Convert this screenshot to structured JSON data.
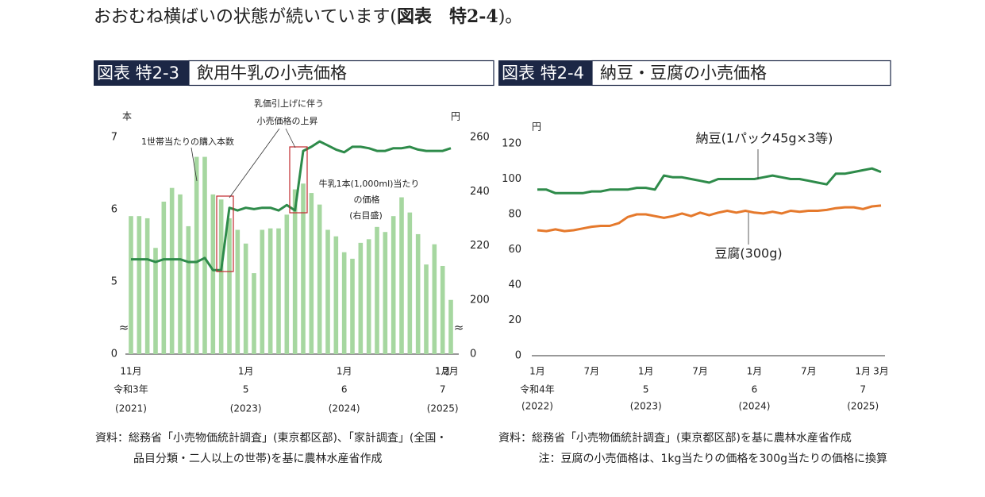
{
  "intro": {
    "parts": [
      "おおむね横ばいの状態が続いています(",
      "図表　特2-4",
      ")。"
    ]
  },
  "chart_data": [
    {
      "type": "bar_line",
      "figure_number": "図表 特2-3",
      "title": "飲用牛乳の小売価格",
      "y_unit": "本",
      "y2_unit": "円",
      "axis_break_symbol": "≈",
      "ylim": [
        0,
        7
      ],
      "ybreak": [
        0,
        4
      ],
      "yticks": [
        0,
        5,
        6,
        7
      ],
      "y2lim": [
        0,
        260
      ],
      "y2break": [
        0,
        180
      ],
      "y2ticks": [
        0,
        200,
        220,
        240,
        260
      ],
      "categories": [
        "11月",
        null,
        null,
        null,
        null,
        null,
        null,
        null,
        null,
        null,
        null,
        null,
        null,
        null,
        "1月",
        null,
        null,
        null,
        null,
        null,
        null,
        null,
        null,
        null,
        null,
        null,
        "1月",
        null,
        null,
        null,
        null,
        null,
        null,
        null,
        null,
        null,
        null,
        null,
        "1月",
        "2月"
      ],
      "era_labels": [
        "令和3年",
        null,
        null,
        null,
        null,
        null,
        null,
        null,
        null,
        null,
        null,
        null,
        null,
        null,
        "5",
        null,
        null,
        null,
        null,
        null,
        null,
        null,
        null,
        null,
        null,
        null,
        "6",
        null,
        null,
        null,
        null,
        null,
        null,
        null,
        null,
        null,
        null,
        null,
        "7",
        null
      ],
      "year_labels": [
        "(2021)",
        null,
        null,
        null,
        null,
        null,
        null,
        null,
        null,
        null,
        null,
        null,
        null,
        null,
        "(2023)",
        null,
        null,
        null,
        null,
        null,
        null,
        null,
        null,
        null,
        null,
        null,
        "(2024)",
        null,
        null,
        null,
        null,
        null,
        null,
        null,
        null,
        null,
        null,
        null,
        "(2025)",
        null
      ],
      "series": [
        {
          "name": [
            "1世帯当たりの購入本数"
          ],
          "type": "bar",
          "color": "#a6d7a0",
          "values": [
            5.91,
            5.91,
            5.88,
            5.47,
            6.11,
            6.3,
            6.21,
            5.77,
            6.73,
            6.73,
            6.21,
            6.14,
            5.88,
            5.72,
            5.53,
            5.12,
            5.72,
            5.74,
            5.74,
            5.93,
            6.28,
            6.36,
            6.23,
            6.07,
            5.72,
            5.63,
            5.41,
            5.32,
            5.54,
            5.59,
            5.76,
            5.69,
            5.91,
            6.17,
            5.96,
            5.66,
            5.24,
            5.52,
            5.22,
            4.75
          ]
        },
        {
          "name": [
            "牛乳1本(1,000ml)当たり",
            "の価格",
            "(右目盛)"
          ],
          "type": "line",
          "axis": "y2",
          "color": "#2e8b4a",
          "values": [
            215,
            215,
            215,
            214,
            215,
            215,
            215,
            214,
            214,
            215.5,
            211,
            211,
            234,
            233,
            234,
            233.5,
            234,
            234,
            233,
            235,
            233,
            255,
            256.5,
            258.5,
            257,
            255.5,
            254.5,
            256.5,
            256.5,
            256,
            255,
            255,
            256,
            256,
            256.5,
            255.5,
            255,
            255,
            255,
            256
          ]
        }
      ],
      "annotation": [
        "乳価引上げに伴う",
        "小売価格の上昇"
      ],
      "source": [
        "資料：総務省「小売物価統計調査」(東京都区部)、「家計調査」(全国・",
        "品目分類・二人以上の世帯)を基に農林水産省作成"
      ]
    },
    {
      "type": "line",
      "figure_number": "図表 特2-4",
      "title": "納豆・豆腐の小売価格",
      "y_unit": "円",
      "ylim": [
        0,
        120
      ],
      "yticks": [
        0,
        20,
        40,
        60,
        80,
        100,
        120
      ],
      "categories": [
        "1月",
        null,
        null,
        null,
        null,
        null,
        "7月",
        null,
        null,
        null,
        null,
        null,
        "1月",
        null,
        null,
        null,
        null,
        null,
        "7月",
        null,
        null,
        null,
        null,
        null,
        "1月",
        null,
        null,
        null,
        null,
        null,
        "7月",
        null,
        null,
        null,
        null,
        null,
        "1月",
        null,
        "3月"
      ],
      "era_labels": [
        "令和4年",
        null,
        null,
        null,
        null,
        null,
        null,
        null,
        null,
        null,
        null,
        null,
        "5",
        null,
        null,
        null,
        null,
        null,
        null,
        null,
        null,
        null,
        null,
        null,
        "6",
        null,
        null,
        null,
        null,
        null,
        null,
        null,
        null,
        null,
        null,
        null,
        "7",
        null,
        null
      ],
      "year_labels": [
        "(2022)",
        null,
        null,
        null,
        null,
        null,
        null,
        null,
        null,
        null,
        null,
        null,
        "(2023)",
        null,
        null,
        null,
        null,
        null,
        null,
        null,
        null,
        null,
        null,
        null,
        "(2024)",
        null,
        null,
        null,
        null,
        null,
        null,
        null,
        null,
        null,
        null,
        null,
        "(2025)",
        null,
        null
      ],
      "series": [
        {
          "name": [
            "納豆(1パック45g×3等)"
          ],
          "color": "#2e8b4a",
          "values": [
            94,
            94,
            92,
            92,
            92,
            92,
            93,
            93,
            94,
            94,
            94,
            95,
            95,
            94,
            102,
            101,
            101,
            100,
            99,
            98,
            100,
            100,
            100,
            100,
            100,
            101,
            102,
            101,
            100,
            100,
            99,
            98,
            97,
            103,
            103,
            104,
            105,
            106,
            104
          ]
        },
        {
          "name": [
            "豆腐(300g)"
          ],
          "color": "#e5792c",
          "values": [
            71,
            70.5,
            71.5,
            70.5,
            71,
            72,
            73,
            73.5,
            73.5,
            75,
            78.5,
            80,
            80,
            79,
            78,
            79,
            80.5,
            79,
            81,
            79.5,
            81,
            82,
            81,
            82,
            81,
            80.5,
            81.5,
            80.5,
            82,
            81.5,
            82,
            82,
            82.5,
            83.5,
            84,
            84,
            83,
            84.5,
            85
          ]
        }
      ],
      "source": [
        "資料：総務省「小売物価統計調査」(東京都区部)を基に農林水産省作成",
        "注：豆腐の小売価格は、1kg当たりの価格を300g当たりの価格に換算"
      ]
    }
  ]
}
